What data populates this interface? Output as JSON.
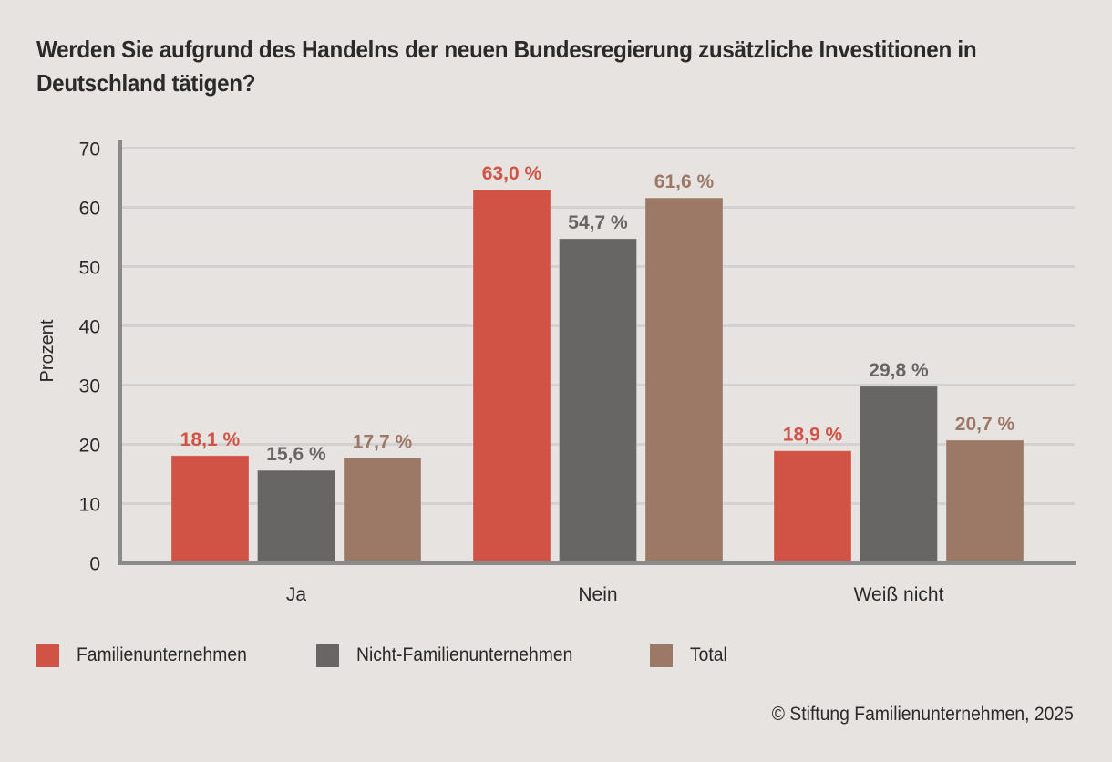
{
  "colors": {
    "background": "#e7e3e0",
    "familien": "#d05345",
    "nicht_familien": "#676664",
    "total": "#9c7867",
    "axis": "#8a8a88",
    "grid": "#d3d1d0",
    "text": "#2b2a29"
  },
  "chart_data": {
    "type": "bar",
    "title": "Werden Sie aufgrund des Handelns der neuen Bundesregierung zusätzliche Investitionen in Deutschland tätigen?",
    "xlabel": "",
    "ylabel": "Prozent",
    "ylim": [
      0,
      70
    ],
    "yticks": [
      0,
      10,
      20,
      30,
      40,
      50,
      60,
      70
    ],
    "grid": true,
    "legend_position": "bottom-left",
    "categories": [
      "Ja",
      "Nein",
      "Weiß nicht"
    ],
    "series": [
      {
        "name": "Familienunternehmen",
        "color": "#d05345",
        "values": [
          18.1,
          63.0,
          18.9
        ],
        "labels": [
          "18,1 %",
          "63,0 %",
          "18,9 %"
        ]
      },
      {
        "name": "Nicht-Familienunternehmen",
        "color": "#676664",
        "values": [
          15.6,
          54.7,
          29.8
        ],
        "labels": [
          "15,6 %",
          "54,7 %",
          "29,8 %"
        ]
      },
      {
        "name": "Total",
        "color": "#9c7867",
        "values": [
          17.7,
          61.6,
          20.7
        ],
        "labels": [
          "17,7 %",
          "61,6 %",
          "20,7 %"
        ]
      }
    ]
  },
  "credit": "© Stiftung Familienunternehmen, 2025"
}
